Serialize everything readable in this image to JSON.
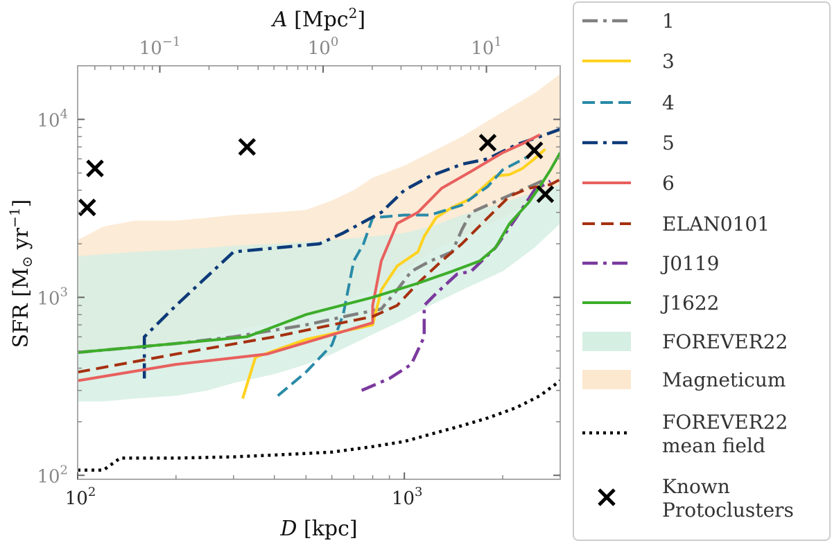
{
  "chart_data": {
    "type": "line",
    "xscale": "log",
    "yscale": "log",
    "xlim": [
      100,
      3000
    ],
    "ylim": [
      95,
      20000
    ],
    "top_xlim": [
      0.0314,
      28.3
    ],
    "xlabel_italic": "D",
    "xlabel_unit": " [kpc]",
    "ylabel": "SFR [M",
    "ylabel_sun": "⊙",
    "ylabel_rest": " yr",
    "ylabel_exp": "−1",
    "ylabel_close": "]",
    "top_xlabel_italic": "A",
    "top_xlabel_unit": " [Mpc",
    "top_xlabel_exp": "2",
    "top_xlabel_close": "]",
    "x_ticks": [
      {
        "value": 100,
        "base": "10",
        "exp": "2"
      },
      {
        "value": 1000,
        "base": "10",
        "exp": "3"
      }
    ],
    "y_ticks": [
      {
        "value": 100,
        "base": "10",
        "exp": "2"
      },
      {
        "value": 1000,
        "base": "10",
        "exp": "3"
      },
      {
        "value": 10000,
        "base": "10",
        "exp": "4"
      }
    ],
    "top_ticks": [
      {
        "value": 0.1,
        "base": "10",
        "exp": "−1"
      },
      {
        "value": 1,
        "base": "10",
        "exp": "0"
      },
      {
        "value": 10,
        "base": "10",
        "exp": "1"
      }
    ],
    "bands": [
      {
        "name": "Magneticum",
        "color": "#fce8cf",
        "x": [
          100,
          120,
          150,
          200,
          250,
          300,
          400,
          500,
          600,
          700,
          800,
          1000,
          1200,
          1500,
          2000,
          2500,
          3000
        ],
        "upper": [
          2100,
          2500,
          2700,
          2700,
          2800,
          2900,
          3000,
          3100,
          3500,
          4000,
          4700,
          5500,
          6500,
          8000,
          11000,
          14000,
          18000
        ],
        "lower": [
          480,
          500,
          520,
          560,
          600,
          650,
          720,
          800,
          900,
          1000,
          1100,
          1400,
          1800,
          2200,
          2800,
          3500,
          4300
        ]
      },
      {
        "name": "FOREVER22",
        "color": "#d6efe3",
        "x": [
          100,
          120,
          150,
          200,
          250,
          300,
          400,
          500,
          600,
          700,
          800,
          1000,
          1200,
          1500,
          2000,
          2500,
          3000
        ],
        "upper": [
          1700,
          1750,
          1800,
          1850,
          1900,
          1950,
          2000,
          2050,
          2100,
          2150,
          2200,
          2300,
          2500,
          2900,
          3400,
          3900,
          4300
        ],
        "lower": [
          260,
          260,
          270,
          280,
          300,
          330,
          370,
          420,
          480,
          550,
          620,
          750,
          900,
          1100,
          1400,
          1900,
          2600
        ]
      }
    ],
    "series": [
      {
        "name": "1",
        "color": "#808080",
        "dash": "22,8,5,8",
        "width": 4.5,
        "points": [
          [
            100,
            490
          ],
          [
            200,
            550
          ],
          [
            300,
            600
          ],
          [
            500,
            700
          ],
          [
            700,
            800
          ],
          [
            850,
            860
          ],
          [
            950,
            1100
          ],
          [
            1050,
            1400
          ],
          [
            1200,
            1600
          ],
          [
            1400,
            1800
          ],
          [
            1500,
            2400
          ],
          [
            1600,
            3000
          ],
          [
            2000,
            3600
          ],
          [
            2500,
            4300
          ],
          [
            2700,
            4600
          ]
        ]
      },
      {
        "name": "3",
        "color": "#ffd21f",
        "dash": "",
        "width": 4,
        "points": [
          [
            320,
            270
          ],
          [
            350,
            460
          ],
          [
            500,
            580
          ],
          [
            800,
            700
          ],
          [
            850,
            1100
          ],
          [
            950,
            1500
          ],
          [
            1100,
            1800
          ],
          [
            1150,
            2200
          ],
          [
            1250,
            2800
          ],
          [
            1400,
            3200
          ],
          [
            1600,
            3600
          ],
          [
            1900,
            4800
          ],
          [
            2100,
            4900
          ],
          [
            2300,
            5300
          ],
          [
            2500,
            6000
          ],
          [
            2700,
            6800
          ]
        ]
      },
      {
        "name": "4",
        "color": "#2a8aa8",
        "dash": "18,8",
        "width": 4,
        "points": [
          [
            410,
            280
          ],
          [
            500,
            380
          ],
          [
            600,
            540
          ],
          [
            650,
            800
          ],
          [
            700,
            1600
          ],
          [
            750,
            2000
          ],
          [
            800,
            2800
          ],
          [
            1000,
            2900
          ],
          [
            1200,
            2900
          ],
          [
            1500,
            3300
          ],
          [
            1800,
            4200
          ],
          [
            2000,
            5200
          ],
          [
            2200,
            5700
          ],
          [
            2400,
            6200
          ]
        ]
      },
      {
        "name": "5",
        "color": "#0d3a78",
        "dash": "22,8,5,8",
        "width": 4.5,
        "points": [
          [
            160,
            350
          ],
          [
            160,
            600
          ],
          [
            200,
            900
          ],
          [
            300,
            1800
          ],
          [
            550,
            2000
          ],
          [
            650,
            2300
          ],
          [
            850,
            3000
          ],
          [
            1000,
            4000
          ],
          [
            1200,
            4800
          ],
          [
            1500,
            5600
          ],
          [
            1800,
            6000
          ],
          [
            2200,
            7200
          ],
          [
            2600,
            8000
          ],
          [
            3000,
            8800
          ]
        ]
      },
      {
        "name": "6",
        "color": "#e8605e",
        "dash": "",
        "width": 4,
        "points": [
          [
            100,
            340
          ],
          [
            200,
            420
          ],
          [
            380,
            480
          ],
          [
            800,
            720
          ],
          [
            800,
            900
          ],
          [
            850,
            1600
          ],
          [
            950,
            2600
          ],
          [
            1100,
            3000
          ],
          [
            1300,
            4100
          ],
          [
            1600,
            5100
          ],
          [
            1800,
            5800
          ],
          [
            2000,
            6500
          ],
          [
            2300,
            7300
          ],
          [
            2600,
            8200
          ]
        ]
      },
      {
        "name": "ELAN0101",
        "color": "#a53010",
        "dash": "18,9",
        "width": 4,
        "points": [
          [
            100,
            380
          ],
          [
            200,
            480
          ],
          [
            400,
            600
          ],
          [
            600,
            700
          ],
          [
            800,
            780
          ],
          [
            950,
            900
          ],
          [
            1100,
            1200
          ],
          [
            1300,
            1600
          ],
          [
            1500,
            2000
          ],
          [
            1800,
            2800
          ],
          [
            2100,
            3700
          ],
          [
            2400,
            4100
          ],
          [
            2800,
            4300
          ],
          [
            3000,
            4600
          ]
        ]
      },
      {
        "name": "J0119",
        "color": "#7b3a9e",
        "dash": "22,8,5,8",
        "width": 4.5,
        "points": [
          [
            740,
            300
          ],
          [
            900,
            350
          ],
          [
            1050,
            420
          ],
          [
            1150,
            600
          ],
          [
            1150,
            900
          ],
          [
            1250,
            1050
          ],
          [
            1450,
            1350
          ],
          [
            1600,
            1400
          ],
          [
            1900,
            1900
          ],
          [
            2200,
            2800
          ],
          [
            2500,
            4000
          ],
          [
            2800,
            4500
          ]
        ]
      },
      {
        "name": "J1622",
        "color": "#3dad2a",
        "dash": "",
        "width": 4,
        "points": [
          [
            100,
            490
          ],
          [
            200,
            550
          ],
          [
            330,
            600
          ],
          [
            500,
            800
          ],
          [
            800,
            1000
          ],
          [
            1100,
            1200
          ],
          [
            1400,
            1400
          ],
          [
            1700,
            1600
          ],
          [
            1900,
            1900
          ],
          [
            2100,
            2600
          ],
          [
            2400,
            3400
          ],
          [
            2600,
            4200
          ],
          [
            2800,
            5200
          ],
          [
            3000,
            6500
          ]
        ]
      },
      {
        "name": "FOREVER22 mean field",
        "color": "#000000",
        "dash": "4,6",
        "width": 4.5,
        "points": [
          [
            100,
            107
          ],
          [
            120,
            107
          ],
          [
            135,
            125
          ],
          [
            200,
            125
          ],
          [
            300,
            127
          ],
          [
            400,
            130
          ],
          [
            600,
            135
          ],
          [
            800,
            145
          ],
          [
            1000,
            155
          ],
          [
            1200,
            170
          ],
          [
            1500,
            190
          ],
          [
            1800,
            210
          ],
          [
            2200,
            240
          ],
          [
            2600,
            280
          ],
          [
            3000,
            340
          ]
        ]
      }
    ],
    "markers": {
      "name": "Known Protoclusters",
      "points": [
        [
          107,
          3200
        ],
        [
          113,
          5300
        ],
        [
          330,
          7000
        ],
        [
          1800,
          7400
        ],
        [
          2500,
          6700
        ],
        [
          2700,
          3800
        ]
      ]
    },
    "legend": [
      {
        "label": "1",
        "kind": "line",
        "series": 0
      },
      {
        "label": "3",
        "kind": "line",
        "series": 1
      },
      {
        "label": "4",
        "kind": "line",
        "series": 2
      },
      {
        "label": "5",
        "kind": "line",
        "series": 3
      },
      {
        "label": "6",
        "kind": "line",
        "series": 4
      },
      {
        "label": "ELAN0101",
        "kind": "line",
        "series": 5
      },
      {
        "label": "J0119",
        "kind": "line",
        "series": 6
      },
      {
        "label": "J1622",
        "kind": "line",
        "series": 7
      },
      {
        "label": "FOREVER22",
        "kind": "band",
        "band": 1
      },
      {
        "label": "Magneticum",
        "kind": "band",
        "band": 0
      },
      {
        "label": "FOREVER22",
        "label2": "mean field",
        "kind": "line",
        "series": 8
      },
      {
        "label": "Known",
        "label2": "Protoclusters",
        "kind": "marker"
      }
    ]
  }
}
